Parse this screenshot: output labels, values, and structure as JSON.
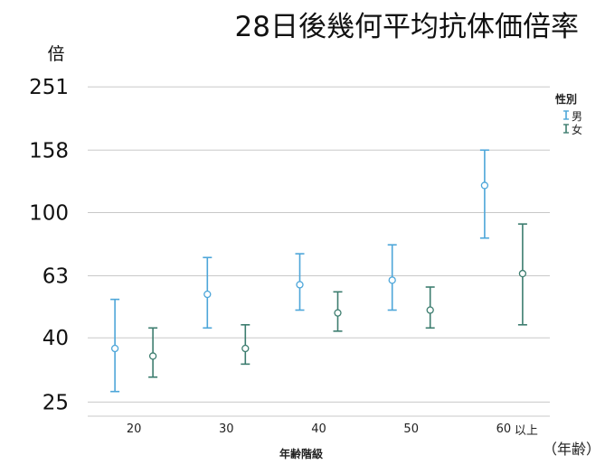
{
  "chart_data": {
    "type": "errorbar",
    "title": "28日後幾何平均抗体価倍率",
    "ylabel": "倍",
    "xlabel": "年齢階級",
    "x_unit": "（年齢）",
    "y_scale": "log",
    "ylim": [
      23,
      265
    ],
    "y_ticks": [
      25,
      40,
      63,
      100,
      158,
      251
    ],
    "y_tick_labels": [
      "25",
      "40",
      "63",
      "100",
      "158",
      "251"
    ],
    "categories": [
      "20",
      "30",
      "40",
      "50",
      "60"
    ],
    "category_labels": [
      "20",
      "30",
      "40",
      "50",
      "60"
    ],
    "last_category_suffix": "以上",
    "grid": true,
    "legend": {
      "title": "性別",
      "position": "right-top",
      "entries": [
        "男",
        "女"
      ]
    },
    "series": [
      {
        "name": "男",
        "color": "#4da6d9",
        "points": [
          {
            "category": "20",
            "mean": 37,
            "lower": 27,
            "upper": 53
          },
          {
            "category": "30",
            "mean": 55,
            "lower": 43,
            "upper": 72
          },
          {
            "category": "40",
            "mean": 59,
            "lower": 49,
            "upper": 74
          },
          {
            "category": "50",
            "mean": 61,
            "lower": 49,
            "upper": 79
          },
          {
            "category": "60",
            "mean": 122,
            "lower": 83,
            "upper": 158
          }
        ]
      },
      {
        "name": "女",
        "color": "#3d7d6f",
        "points": [
          {
            "category": "20",
            "mean": 35,
            "lower": 30,
            "upper": 43
          },
          {
            "category": "30",
            "mean": 37,
            "lower": 33,
            "upper": 44
          },
          {
            "category": "40",
            "mean": 48,
            "lower": 42,
            "upper": 56
          },
          {
            "category": "50",
            "mean": 49,
            "lower": 43,
            "upper": 58
          },
          {
            "category": "60",
            "mean": 64,
            "lower": 44,
            "upper": 92
          }
        ]
      }
    ]
  }
}
